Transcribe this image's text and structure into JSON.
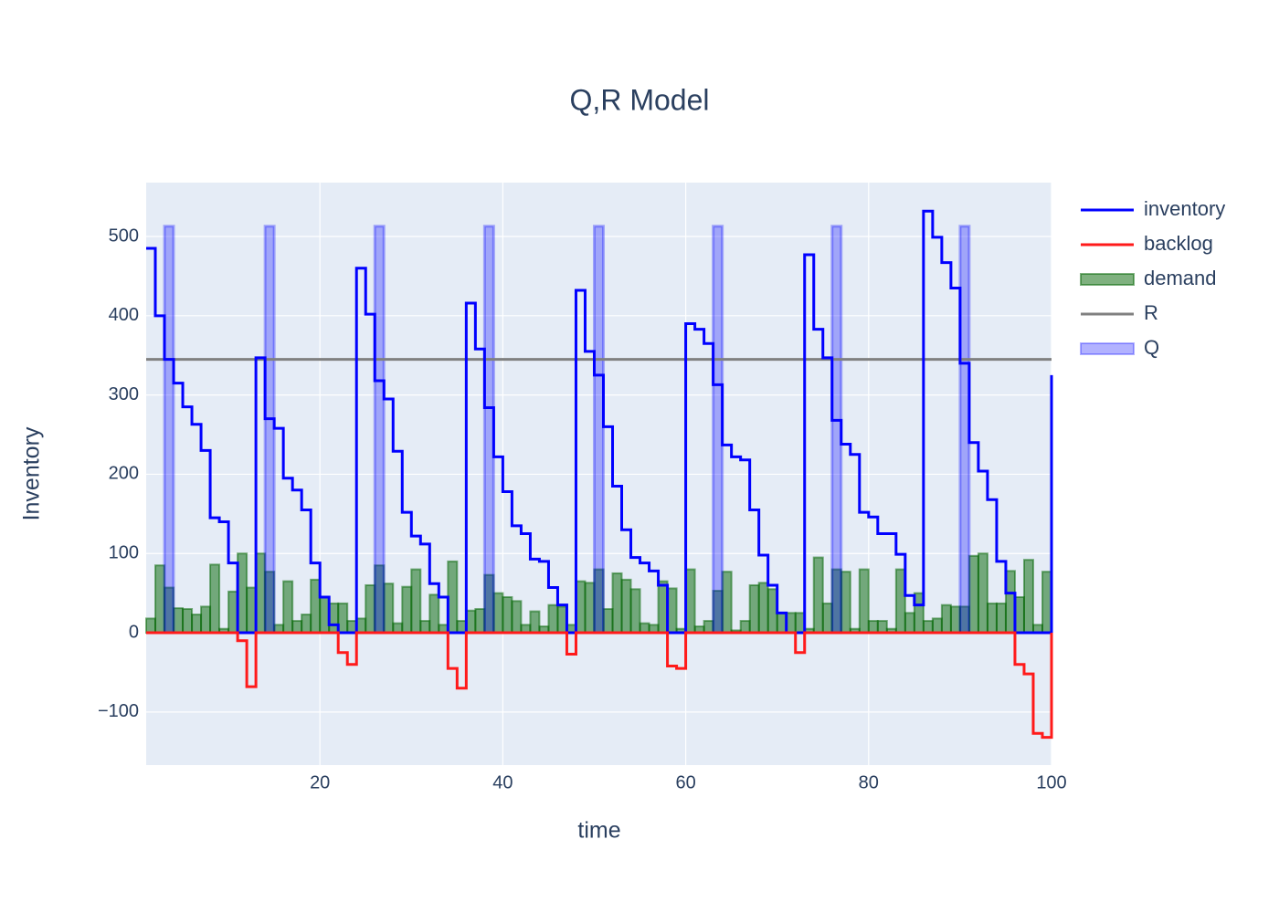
{
  "chart_data": {
    "type": "step",
    "title": "Q,R Model",
    "x_label": "time",
    "y_label": "Inventory",
    "xlim": [
      1,
      100
    ],
    "ylim": [
      -167,
      568
    ],
    "xticks": [
      20,
      40,
      60,
      80,
      100
    ],
    "yticks": [
      {
        "value": -100,
        "label": "−100"
      },
      0,
      100,
      200,
      300,
      400,
      500
    ],
    "grid": true,
    "legend": "right",
    "x": [
      1,
      2,
      3,
      4,
      5,
      6,
      7,
      8,
      9,
      10,
      11,
      12,
      13,
      14,
      15,
      16,
      17,
      18,
      19,
      20,
      21,
      22,
      23,
      24,
      25,
      26,
      27,
      28,
      29,
      30,
      31,
      32,
      33,
      34,
      35,
      36,
      37,
      38,
      39,
      40,
      41,
      42,
      43,
      44,
      45,
      46,
      47,
      48,
      49,
      50,
      51,
      52,
      53,
      54,
      55,
      56,
      57,
      58,
      59,
      60,
      61,
      62,
      63,
      64,
      65,
      66,
      67,
      68,
      69,
      70,
      71,
      72,
      73,
      74,
      75,
      76,
      77,
      78,
      79,
      80,
      81,
      82,
      83,
      84,
      85,
      86,
      87,
      88,
      89,
      90,
      91,
      92,
      93,
      94,
      95,
      96,
      97,
      98,
      99,
      100
    ],
    "series": [
      {
        "name": "inventory",
        "type": "line",
        "color": "#0000ff",
        "values": [
          485,
          400,
          345,
          315,
          285,
          263,
          230,
          145,
          140,
          88,
          0,
          0,
          347,
          270,
          258,
          195,
          180,
          155,
          88,
          45,
          10,
          0,
          0,
          460,
          402,
          318,
          295,
          229,
          152,
          122,
          112,
          62,
          45,
          0,
          0,
          416,
          358,
          284,
          222,
          178,
          135,
          125,
          93,
          90,
          57,
          35,
          0,
          432,
          355,
          325,
          260,
          185,
          130,
          95,
          88,
          78,
          60,
          0,
          0,
          390,
          383,
          365,
          313,
          237,
          222,
          218,
          155,
          98,
          60,
          25,
          0,
          0,
          477,
          383,
          347,
          268,
          238,
          225,
          152,
          146,
          125,
          125,
          99,
          47,
          35,
          532,
          499,
          467,
          435,
          340,
          240,
          204,
          168,
          90,
          50,
          0,
          0,
          0,
          0,
          325
        ]
      },
      {
        "name": "backlog",
        "type": "line",
        "color": "#ff1a1a",
        "values": [
          0,
          0,
          0,
          0,
          0,
          0,
          0,
          0,
          0,
          0,
          -10,
          -68,
          0,
          0,
          0,
          0,
          0,
          0,
          0,
          0,
          0,
          -25,
          -40,
          0,
          0,
          0,
          0,
          0,
          0,
          0,
          0,
          0,
          0,
          -45,
          -70,
          0,
          0,
          0,
          0,
          0,
          0,
          0,
          0,
          0,
          0,
          0,
          -27,
          0,
          0,
          0,
          0,
          0,
          0,
          0,
          0,
          0,
          0,
          -42,
          -45,
          0,
          0,
          0,
          0,
          0,
          0,
          0,
          0,
          0,
          0,
          0,
          0,
          -25,
          0,
          0,
          0,
          0,
          0,
          0,
          0,
          0,
          0,
          0,
          0,
          0,
          0,
          0,
          0,
          0,
          0,
          0,
          0,
          0,
          0,
          0,
          0,
          -40,
          -52,
          -127,
          -132,
          0
        ]
      },
      {
        "name": "demand",
        "type": "area",
        "color": "#006400",
        "values": [
          18,
          85,
          57,
          31,
          30,
          23,
          33,
          86,
          5,
          52,
          100,
          57,
          100,
          77,
          10,
          65,
          15,
          23,
          67,
          45,
          37,
          37,
          15,
          18,
          60,
          85,
          62,
          12,
          58,
          80,
          15,
          48,
          10,
          90,
          15,
          28,
          30,
          73,
          50,
          45,
          40,
          10,
          27,
          8,
          35,
          33,
          10,
          65,
          63,
          80,
          30,
          75,
          67,
          55,
          12,
          10,
          65,
          56,
          5,
          80,
          8,
          15,
          53,
          77,
          3,
          15,
          60,
          63,
          55,
          25,
          25,
          25,
          5,
          95,
          37,
          80,
          77,
          5,
          80,
          15,
          15,
          5,
          80,
          25,
          50,
          15,
          18,
          35,
          33,
          33,
          97,
          100,
          37,
          37,
          78,
          45,
          92,
          10,
          77,
          5
        ]
      },
      {
        "name": "R",
        "type": "hline",
        "color": "#808080",
        "x": [
          1,
          100
        ],
        "values": [
          345,
          345
        ]
      },
      {
        "name": "Q",
        "type": "bar",
        "color": "#0000ff",
        "x": [
          3.5,
          14.5,
          26.5,
          38.5,
          50.5,
          63.5,
          76.5,
          90.5
        ],
        "values": [
          513,
          513,
          513,
          513,
          513,
          513,
          513,
          513
        ]
      }
    ]
  }
}
